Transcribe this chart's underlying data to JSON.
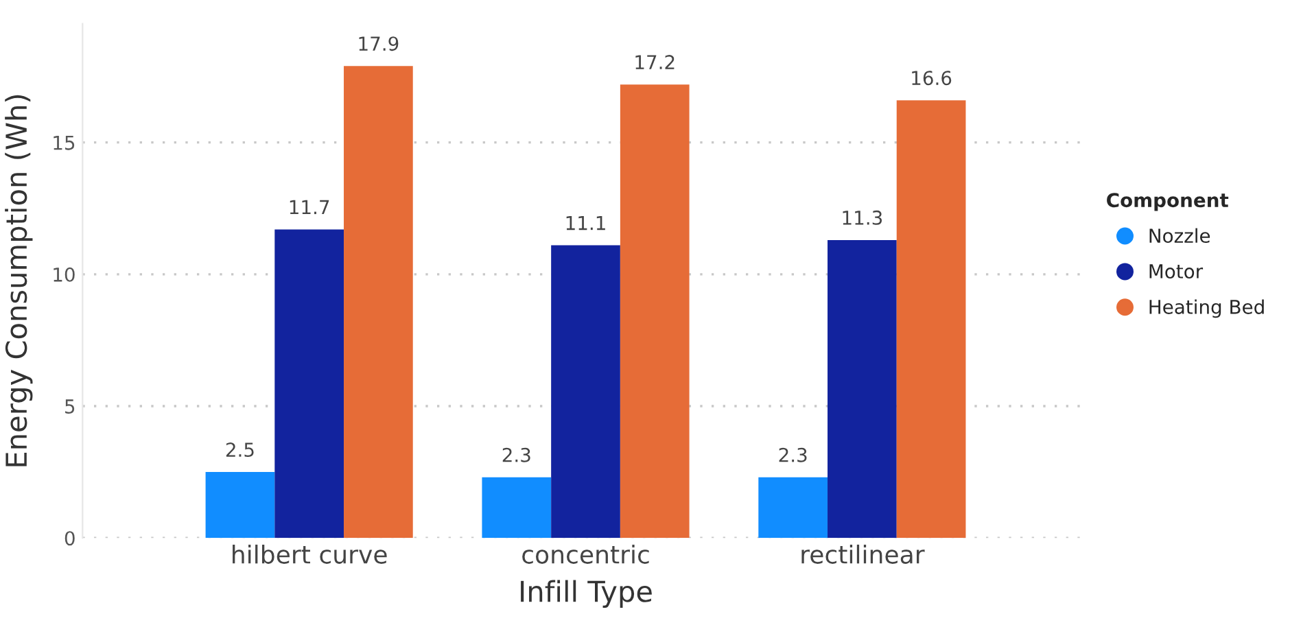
{
  "chart_data": {
    "type": "bar",
    "xlabel": "Infill Type",
    "ylabel": "Energy Consumption (Wh)",
    "legend_title": "Component",
    "categories": [
      "hilbert curve",
      "concentric",
      "rectilinear"
    ],
    "series": [
      {
        "name": "Nozzle",
        "color": "#118dff",
        "values": [
          2.5,
          2.3,
          2.3
        ]
      },
      {
        "name": "Motor",
        "color": "#12239e",
        "values": [
          11.7,
          11.1,
          11.3
        ]
      },
      {
        "name": "Heating Bed",
        "color": "#e66c37",
        "values": [
          17.9,
          17.2,
          16.6
        ]
      }
    ],
    "ylim": [
      0,
      19.5
    ],
    "yticks": [
      0,
      5,
      10,
      15
    ],
    "grid": "y",
    "legend": "right",
    "data_labels": true,
    "marker": "circle"
  }
}
